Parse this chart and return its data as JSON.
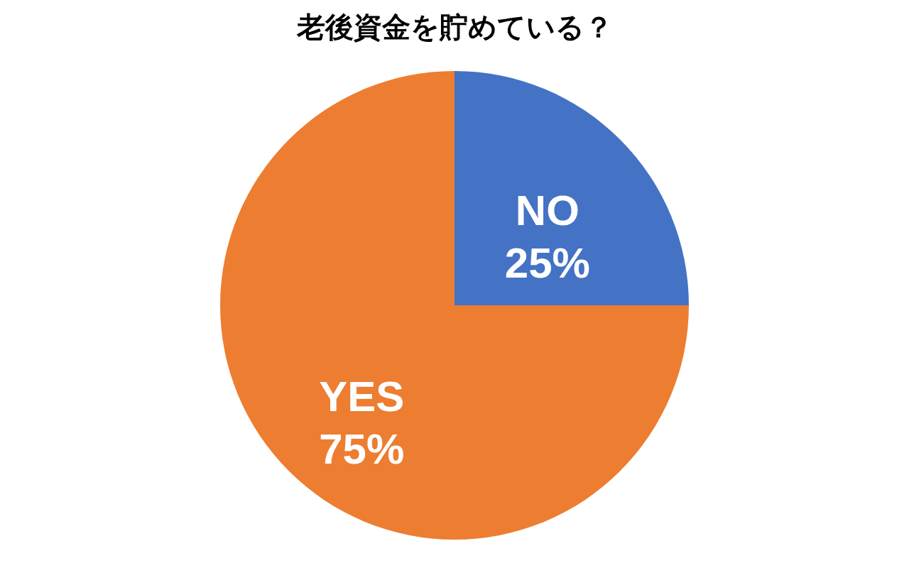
{
  "chart_data": {
    "type": "pie",
    "title": "老後資金を貯めている？",
    "categories": [
      "NO",
      "YES"
    ],
    "values": [
      25,
      75
    ],
    "colors": [
      "#4472c4",
      "#ed7d31"
    ],
    "value_labels": [
      "25%",
      "75%"
    ],
    "legend": false
  }
}
